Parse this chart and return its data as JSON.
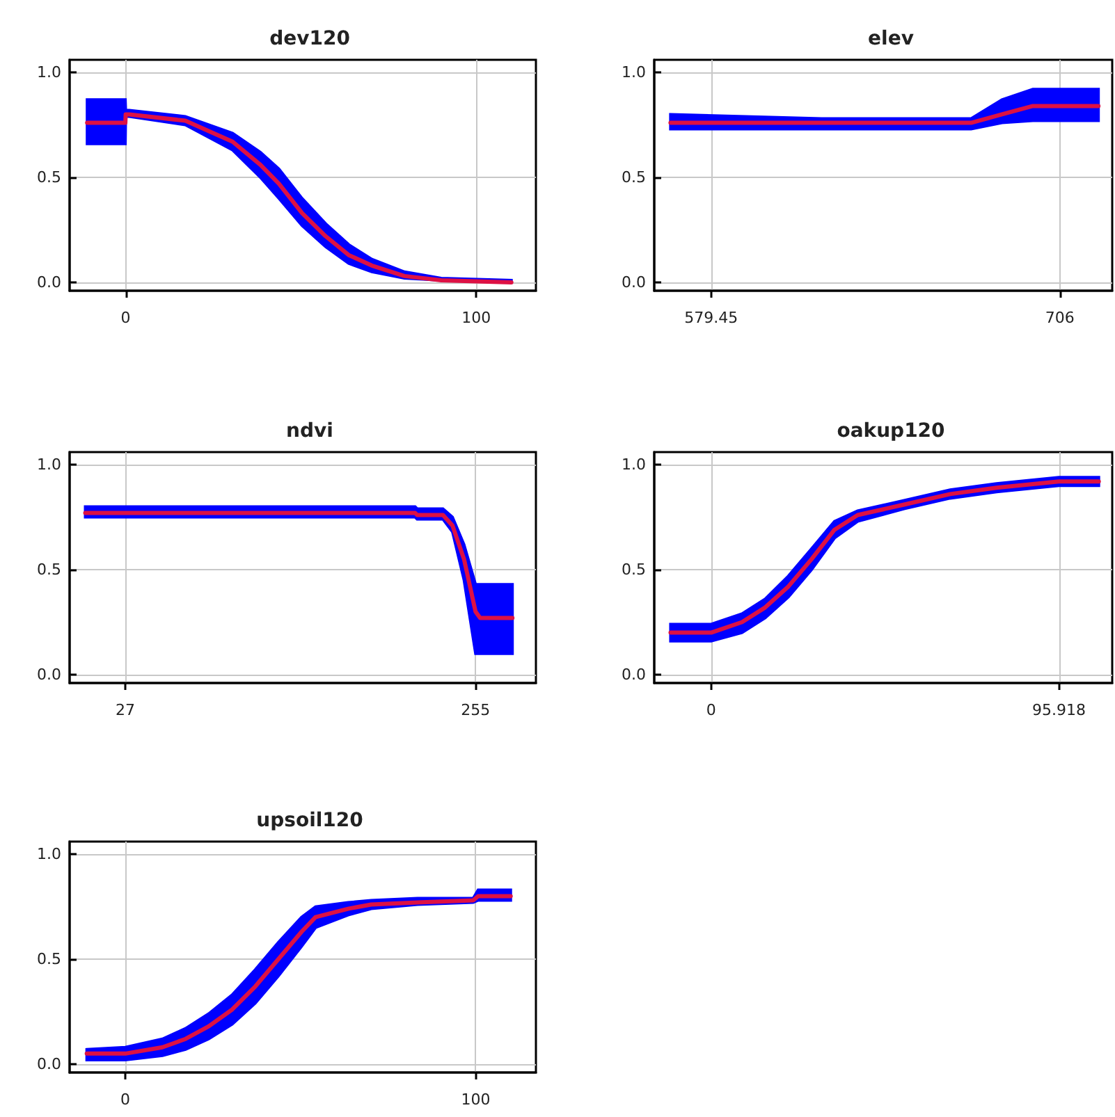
{
  "chart_data": [
    {
      "type": "line",
      "title": "dev120",
      "xlim": [
        -16,
        117
      ],
      "xticks": [
        0,
        100
      ],
      "ylim": [
        -0.04,
        1.06
      ],
      "yticks": [
        {
          "value": 0,
          "label": "0.0"
        },
        {
          "value": 0.5,
          "label": "0.5"
        },
        {
          "value": 1,
          "label": "1.0"
        }
      ],
      "grid": true,
      "series": [
        {
          "color": "#dd1144",
          "x": [
            -11,
            -0.1,
            0,
            1,
            17,
            30.5,
            38.4,
            43.7,
            50.3,
            57,
            63.6,
            70.2,
            79.5,
            90,
            110
          ],
          "values": [
            0.76,
            0.76,
            0.8,
            0.8,
            0.77,
            0.67,
            0.56,
            0.47,
            0.33,
            0.22,
            0.13,
            0.08,
            0.03,
            0.01,
            0
          ],
          "lower": [
            0.66,
            0.66,
            0.79,
            0.79,
            0.75,
            0.63,
            0.5,
            0.4,
            0.27,
            0.17,
            0.09,
            0.05,
            0.02,
            0.01,
            0
          ],
          "upper": [
            0.87,
            0.87,
            0.82,
            0.82,
            0.79,
            0.71,
            0.62,
            0.54,
            0.4,
            0.28,
            0.18,
            0.11,
            0.05,
            0.02,
            0.01
          ]
        }
      ]
    },
    {
      "type": "line",
      "title": "elev",
      "xlim": [
        558.8,
        725
      ],
      "xticks": [
        579.45,
        706
      ],
      "ylim": [
        -0.04,
        1.06
      ],
      "yticks": [
        {
          "value": 0,
          "label": "0.0"
        },
        {
          "value": 0.5,
          "label": "0.5"
        },
        {
          "value": 1,
          "label": "1.0"
        }
      ],
      "grid": true,
      "series": [
        {
          "color": "#dd1144",
          "x": [
            564.7,
            619.5,
            673.8,
            685,
            696.2,
            720
          ],
          "values": [
            0.76,
            0.76,
            0.76,
            0.8,
            0.84,
            0.84
          ],
          "lower": [
            0.73,
            0.73,
            0.73,
            0.76,
            0.77,
            0.77
          ],
          "upper": [
            0.8,
            0.78,
            0.78,
            0.87,
            0.92,
            0.92
          ]
        }
      ]
    },
    {
      "type": "line",
      "title": "ndvi",
      "xlim": [
        -9.2,
        294.3
      ],
      "xticks": [
        27,
        255
      ],
      "ylim": [
        -0.04,
        1.06
      ],
      "yticks": [
        {
          "value": 0,
          "label": "0.0"
        },
        {
          "value": 0.5,
          "label": "0.5"
        },
        {
          "value": 1,
          "label": "1.0"
        }
      ],
      "grid": true,
      "series": [
        {
          "color": "#dd1144",
          "x": [
            1,
            215.7,
            217,
            233.8,
            240,
            247.5,
            255,
            258,
            279
          ],
          "values": [
            0.77,
            0.77,
            0.76,
            0.76,
            0.71,
            0.55,
            0.3,
            0.27,
            0.27
          ],
          "lower": [
            0.75,
            0.75,
            0.74,
            0.74,
            0.68,
            0.45,
            0.1,
            0.1,
            0.1
          ],
          "upper": [
            0.8,
            0.8,
            0.79,
            0.79,
            0.75,
            0.62,
            0.43,
            0.43,
            0.43
          ]
        }
      ]
    },
    {
      "type": "line",
      "title": "oakup120",
      "xlim": [
        -15.7,
        110.6
      ],
      "xticks": [
        0,
        95.918
      ],
      "ylim": [
        -0.04,
        1.06
      ],
      "yticks": [
        {
          "value": 0,
          "label": "0.0"
        },
        {
          "value": 0.5,
          "label": "0.5"
        },
        {
          "value": 1,
          "label": "1.0"
        }
      ],
      "grid": true,
      "series": [
        {
          "color": "#dd1144",
          "x": [
            -11.2,
            0,
            8.5,
            14.9,
            21.3,
            27.7,
            34,
            40.4,
            53.2,
            65.9,
            78.7,
            95.9,
            106.9
          ],
          "values": [
            0.2,
            0.2,
            0.25,
            0.32,
            0.42,
            0.55,
            0.69,
            0.76,
            0.81,
            0.86,
            0.89,
            0.92,
            0.92
          ],
          "lower": [
            0.16,
            0.16,
            0.2,
            0.27,
            0.37,
            0.5,
            0.65,
            0.73,
            0.79,
            0.84,
            0.87,
            0.9,
            0.9
          ],
          "upper": [
            0.24,
            0.24,
            0.29,
            0.36,
            0.47,
            0.6,
            0.73,
            0.78,
            0.83,
            0.88,
            0.91,
            0.94,
            0.94
          ]
        }
      ]
    },
    {
      "type": "line",
      "title": "upsoil120",
      "xlim": [
        -15.9,
        117.2
      ],
      "xticks": [
        0,
        100
      ],
      "ylim": [
        -0.04,
        1.06
      ],
      "yticks": [
        {
          "value": 0,
          "label": "0.0"
        },
        {
          "value": 0.5,
          "label": "0.5"
        },
        {
          "value": 1,
          "label": "1.0"
        }
      ],
      "grid": true,
      "series": [
        {
          "color": "#dd1144",
          "x": [
            -11,
            0,
            10.6,
            17.2,
            23.8,
            30.5,
            37.1,
            43.7,
            50.3,
            54.3,
            63.6,
            70.2,
            83.4,
            99.3,
            100.7,
            110
          ],
          "values": [
            0.05,
            0.05,
            0.08,
            0.12,
            0.18,
            0.26,
            0.37,
            0.5,
            0.63,
            0.7,
            0.74,
            0.76,
            0.77,
            0.78,
            0.8,
            0.8
          ],
          "lower": [
            0.02,
            0.02,
            0.04,
            0.07,
            0.12,
            0.19,
            0.29,
            0.42,
            0.56,
            0.65,
            0.71,
            0.74,
            0.76,
            0.77,
            0.78,
            0.78
          ],
          "upper": [
            0.07,
            0.08,
            0.12,
            0.17,
            0.24,
            0.33,
            0.45,
            0.58,
            0.7,
            0.75,
            0.77,
            0.78,
            0.79,
            0.79,
            0.83,
            0.83
          ]
        }
      ]
    }
  ]
}
